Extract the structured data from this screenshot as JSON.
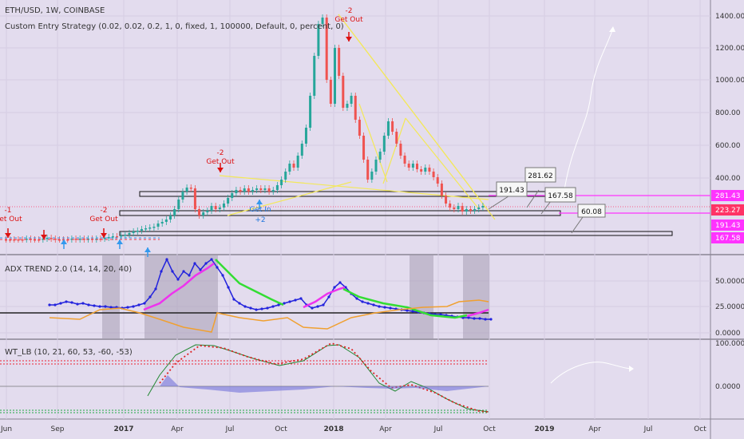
{
  "header": {
    "symbol": "ETH/USD, 1W, COINBASE",
    "strategy": "Custom Entry Strategy (0.02, 0.02, 0.2, 1, 0, fixed, 1, 100000, Default, 0, percent, 0)"
  },
  "panes": {
    "adx_label": "ADX TREND 2.0 (14, 14, 20, 40)",
    "wt_label": "WT_LB (10, 21, 60, 53, -60, -53)"
  },
  "price_axis": [
    "1400.00",
    "1200.00",
    "1000.00",
    "800.00",
    "600.00",
    "400.00"
  ],
  "price_tags": [
    {
      "text": "281.43",
      "color": "#ff33ff"
    },
    {
      "text": "223.27",
      "color": "#ff3366"
    },
    {
      "text": "191.43",
      "color": "#ff33ff"
    },
    {
      "text": "167.58",
      "color": "#ff33ff"
    }
  ],
  "adx_axis": [
    "50.0000",
    "25.0000",
    "0.0000"
  ],
  "wt_axis": [
    "100.0000",
    "0.0000"
  ],
  "time_axis": [
    "Jun",
    "Sep",
    "2017",
    "Apr",
    "Jul",
    "Oct",
    "2018",
    "Apr",
    "Jul",
    "Oct",
    "2019",
    "Apr",
    "Jul",
    "Oct"
  ],
  "signals": {
    "top_num": "-2",
    "top_text": "Get Out",
    "mid_num": "-2",
    "mid_text": "Get Out",
    "left_num": "-2",
    "left_text": "Get Out",
    "edge_num": "-1",
    "edge_text": "Get Out",
    "getin_text": "Get In",
    "getin_num": "+2"
  },
  "callouts": [
    "281.62",
    "191.43",
    "167.58",
    "60.08"
  ],
  "colors": {
    "up": "#26a69a",
    "down": "#ef5350",
    "adx": "#2323dd",
    "adx_up": "#ee33ee",
    "adx_down": "#33dd33"
  }
}
